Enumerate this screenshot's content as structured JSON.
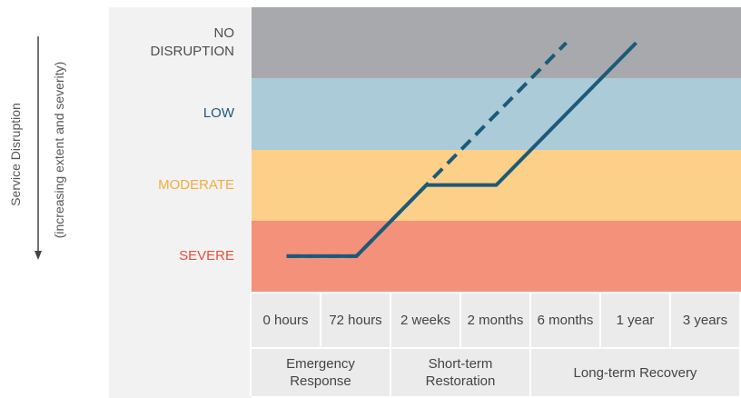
{
  "chart_data": {
    "type": "line",
    "ylabel": "Service Disruption",
    "ysublabel": "(increasing extent and severity)",
    "ylim": [
      0,
      4
    ],
    "bands": [
      {
        "name": "SEVERE",
        "color": "#f4917b",
        "label_color": "#e0503a"
      },
      {
        "name": "MODERATE",
        "color": "#fdd089",
        "label_color": "#f2ad3a"
      },
      {
        "name": "LOW",
        "color": "#abcbd9",
        "label_color": "#1b5a78"
      },
      {
        "name": "NO DISRUPTION",
        "color": "#a7a9ac",
        "label_color": "#4d4d4f"
      }
    ],
    "categories": [
      "0 hours",
      "72 hours",
      "2 weeks",
      "2 months",
      "6 months",
      "1 year",
      "3 years"
    ],
    "phases": [
      {
        "label": "Emergency Response",
        "span": 2
      },
      {
        "label": "Short-term Restoration",
        "span": 2
      },
      {
        "label": "Long-term Recovery",
        "span": 3
      }
    ],
    "series": [
      {
        "style": "solid",
        "color": "#1b5a78",
        "values": [
          0.5,
          0.5,
          1.5,
          1.5,
          2.5,
          3.5,
          null
        ]
      },
      {
        "style": "dashed",
        "color": "#1b5a78",
        "values": [
          0.5,
          0.5,
          1.5,
          2.5,
          3.5,
          null,
          null
        ]
      }
    ]
  }
}
